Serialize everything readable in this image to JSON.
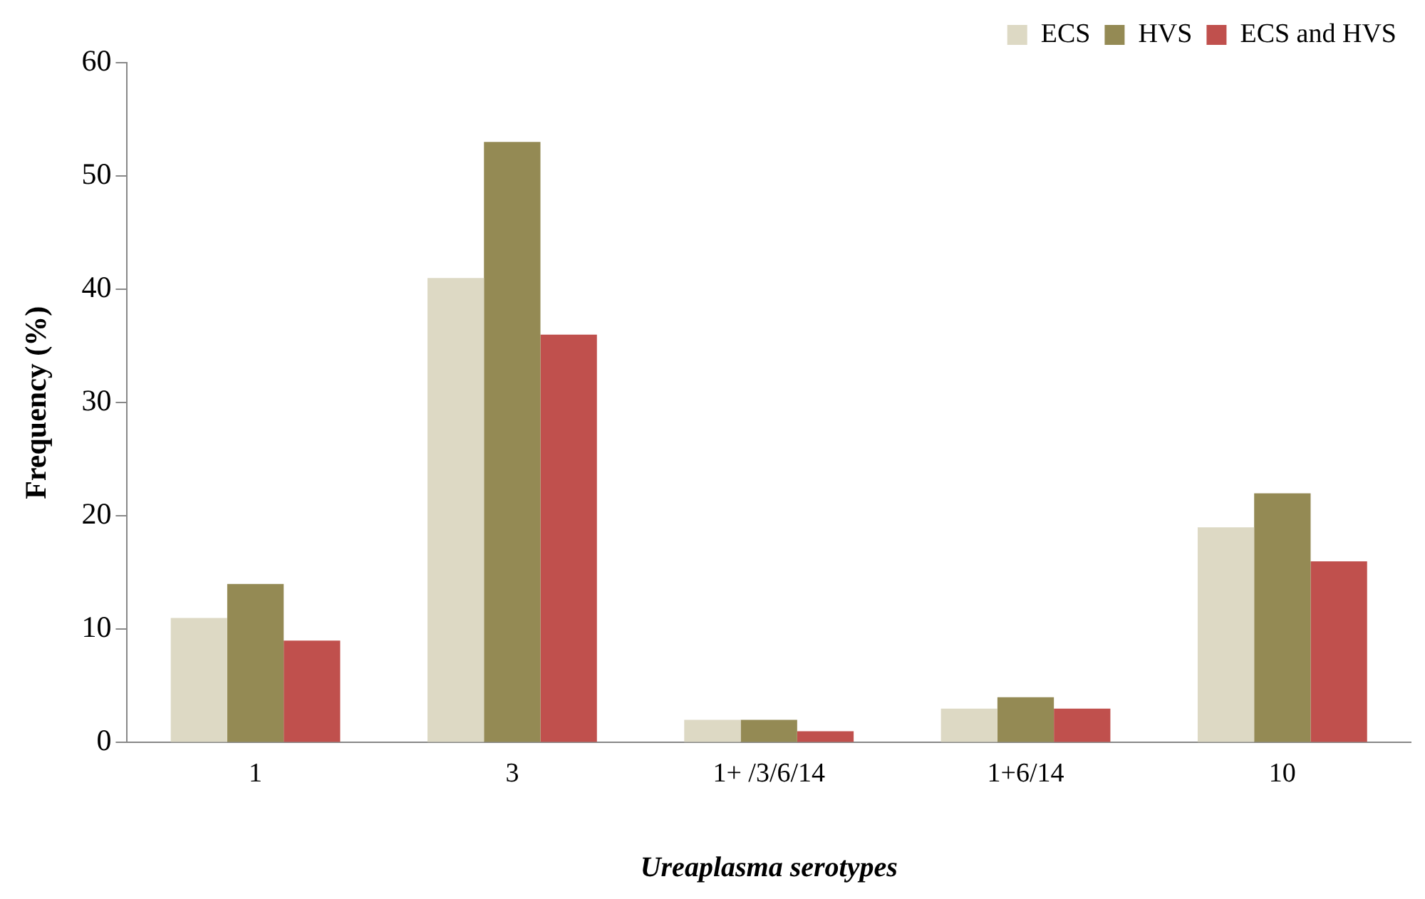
{
  "chart_data": {
    "type": "bar",
    "xlabel": "Ureaplasma serotypes",
    "ylabel": "Frequency (%)",
    "categories": [
      "1",
      "3",
      "1+ /3/6/14",
      "1+6/14",
      "10"
    ],
    "series": [
      {
        "name": "ECS",
        "color": "#ddd9c4",
        "values": [
          11,
          41,
          2,
          3,
          19
        ]
      },
      {
        "name": "HVS",
        "color": "#948a54",
        "values": [
          14,
          53,
          2,
          4,
          22
        ]
      },
      {
        "name": "ECS and HVS",
        "color": "#c0504d",
        "values": [
          9,
          36,
          1,
          3,
          16
        ]
      }
    ],
    "ylim": [
      0,
      60
    ],
    "yticks": [
      0,
      10,
      20,
      30,
      40,
      50,
      60
    ],
    "grid": false,
    "legend": "top right"
  }
}
